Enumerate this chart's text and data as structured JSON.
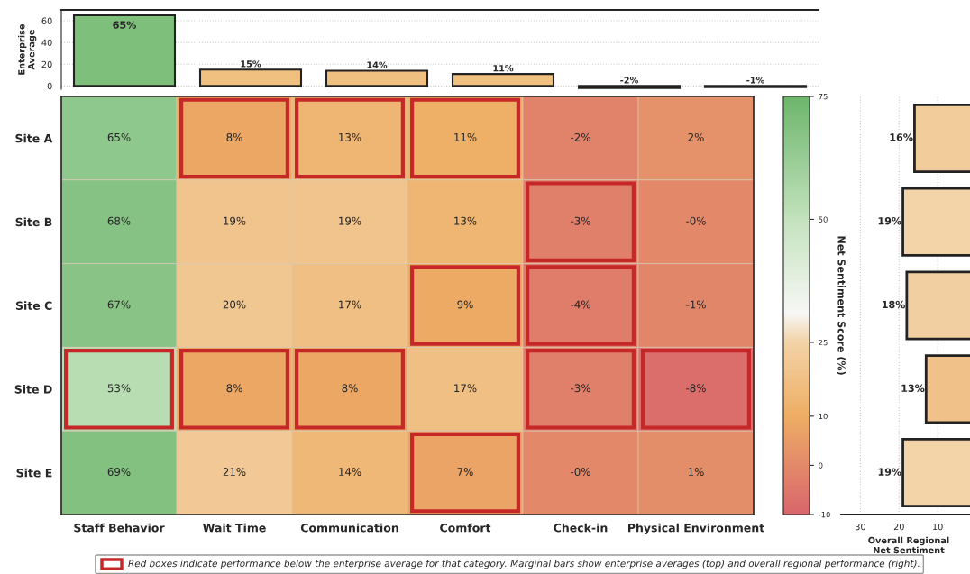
{
  "chart_data": [
    {
      "type": "bar",
      "ylabel": "Enterprise\nAverage",
      "categories": [
        null,
        null,
        null,
        null,
        null,
        null
      ],
      "values": [
        65,
        15,
        14,
        11,
        -2,
        -1
      ],
      "colors": [
        "#7dbf7b",
        "#f0c080",
        "#f0c080",
        "#f0c080",
        "#e58c6c",
        "#e58c6c"
      ],
      "value_labels": [
        "65%",
        "15%",
        "14%",
        "11%",
        "-2%",
        "-1%"
      ],
      "ylim": [
        -3,
        70
      ],
      "yticks": [
        0,
        20,
        40,
        60
      ],
      "grid": "y",
      "tick_labels": "y"
    },
    {
      "type": "heatmap",
      "categories": [
        "Staff Behavior",
        "Wait Time",
        "Communication",
        "Comfort",
        "Check-in",
        "Physical Environment"
      ],
      "y_categories": [
        "Site A",
        "Site B",
        "Site C",
        "Site D",
        "Site E"
      ],
      "cells": [
        [
          65,
          8,
          13,
          10.6,
          -2,
          2
        ],
        [
          68,
          19,
          19,
          13,
          -3,
          -0.3
        ],
        [
          67,
          20,
          17,
          9,
          -4,
          -1
        ],
        [
          53,
          8,
          8,
          17,
          -3,
          -8
        ],
        [
          69,
          21,
          14,
          7,
          -0.3,
          1
        ]
      ],
      "cell_labels": [
        [
          "65%",
          "8%",
          "13%",
          "11%",
          "-2%",
          "2%"
        ],
        [
          "68%",
          "19%",
          "19%",
          "13%",
          "-3%",
          "-0%"
        ],
        [
          "67%",
          "20%",
          "17%",
          "9%",
          "-4%",
          "-1%"
        ],
        [
          "53%",
          "8%",
          "8%",
          "17%",
          "-3%",
          "-8%"
        ],
        [
          "69%",
          "21%",
          "14%",
          "7%",
          "-0%",
          "1%"
        ]
      ],
      "clim": [
        -10,
        75
      ],
      "cticks": [
        -10,
        0,
        10,
        25,
        50,
        75
      ],
      "clabel": "Net Sentiment Score (%)",
      "annotations": [
        "Red boxes indicate performance below the enterprise average for that category. Marginal bars show enterprise averages (top) and overall regional performance (right)."
      ]
    },
    {
      "type": "bar",
      "orientation": "horizontal",
      "xlabel": "Overall Regional\nNet Sentiment",
      "categories": [
        null,
        null,
        null,
        null,
        null
      ],
      "values": [
        16,
        19,
        18,
        13,
        19
      ],
      "colors": [
        "#f2cc9a",
        "#f3d3a8",
        "#f2cfa0",
        "#f0c28a",
        "#f3d3a8"
      ],
      "value_labels": [
        "16%",
        "19%",
        "18%",
        "13%",
        "19%"
      ],
      "xlim": [
        35,
        0
      ],
      "xticks": [
        30,
        20,
        10
      ],
      "grid": "x",
      "tick_labels": "x"
    }
  ]
}
